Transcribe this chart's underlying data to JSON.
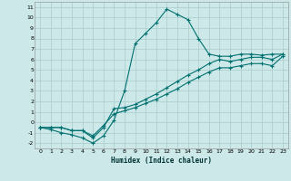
{
  "xlabel": "Humidex (Indice chaleur)",
  "background_color": "#cce8e8",
  "grid_color": "#aacccc",
  "line_color": "#007070",
  "xlim": [
    -0.5,
    23.5
  ],
  "ylim": [
    -2.5,
    11.5
  ],
  "xticks": [
    0,
    1,
    2,
    3,
    4,
    5,
    6,
    7,
    8,
    9,
    10,
    11,
    12,
    13,
    14,
    15,
    16,
    17,
    18,
    19,
    20,
    21,
    22,
    23
  ],
  "yticks": [
    -2,
    -1,
    0,
    1,
    2,
    3,
    4,
    5,
    6,
    7,
    8,
    9,
    10,
    11
  ],
  "line1_x": [
    0,
    1,
    2,
    3,
    4,
    5,
    6,
    7,
    8,
    9,
    10,
    11,
    12,
    13,
    14,
    15,
    16,
    17,
    18,
    19,
    20,
    21,
    22,
    23
  ],
  "line1_y": [
    -0.5,
    -0.7,
    -1.0,
    -1.2,
    -1.5,
    -2.0,
    -1.3,
    0.2,
    3.0,
    7.5,
    8.5,
    9.5,
    10.8,
    10.3,
    9.8,
    8.0,
    6.5,
    6.3,
    6.3,
    6.5,
    6.5,
    6.4,
    6.5,
    6.5
  ],
  "line2_x": [
    0,
    1,
    2,
    3,
    4,
    5,
    6,
    7,
    8,
    9,
    10,
    11,
    12,
    13,
    14,
    15,
    16,
    17,
    18,
    19,
    20,
    21,
    22,
    23
  ],
  "line2_y": [
    -0.5,
    -0.5,
    -0.5,
    -0.8,
    -0.8,
    -1.5,
    -0.5,
    1.3,
    1.4,
    1.7,
    2.2,
    2.7,
    3.3,
    3.9,
    4.5,
    5.0,
    5.6,
    6.0,
    5.8,
    6.0,
    6.2,
    6.2,
    6.0,
    6.5
  ],
  "line3_x": [
    0,
    1,
    2,
    3,
    4,
    5,
    6,
    7,
    8,
    9,
    10,
    11,
    12,
    13,
    14,
    15,
    16,
    17,
    18,
    19,
    20,
    21,
    22,
    23
  ],
  "line3_y": [
    -0.5,
    -0.5,
    -0.5,
    -0.8,
    -0.8,
    -1.3,
    -0.3,
    0.8,
    1.1,
    1.4,
    1.8,
    2.2,
    2.7,
    3.2,
    3.8,
    4.3,
    4.8,
    5.2,
    5.2,
    5.4,
    5.6,
    5.6,
    5.4,
    6.3
  ]
}
